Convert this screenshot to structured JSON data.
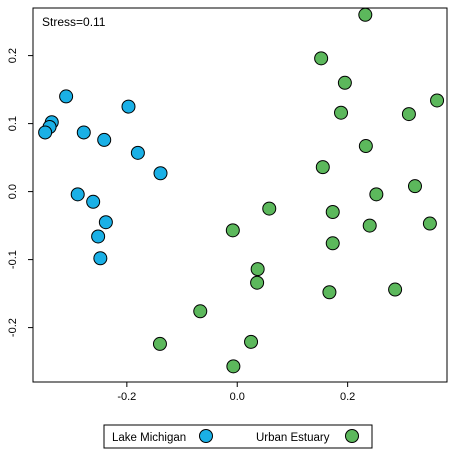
{
  "chart_data": {
    "type": "scatter",
    "title": "",
    "xlabel": "",
    "ylabel": "",
    "annotation": "Stress=0.11",
    "xlim": [
      -0.37,
      0.38
    ],
    "ylim": [
      -0.28,
      0.27
    ],
    "x_ticks": [
      -0.2,
      0.0,
      0.2
    ],
    "x_tick_labels": [
      "-0.2",
      "0.0",
      "0.2"
    ],
    "y_ticks": [
      -0.2,
      -0.1,
      0.0,
      0.1,
      0.2
    ],
    "y_tick_labels": [
      "-0.2",
      "-0.1",
      "0.0",
      "0.1",
      "0.2"
    ],
    "grid": false,
    "legend_position": "bottom",
    "series": [
      {
        "name": "Lake Michigan",
        "color": "#1ab0e6",
        "points": [
          [
            -0.31,
            0.14
          ],
          [
            -0.197,
            0.125
          ],
          [
            -0.336,
            0.102
          ],
          [
            -0.34,
            0.095
          ],
          [
            -0.348,
            0.087
          ],
          [
            -0.278,
            0.087
          ],
          [
            -0.241,
            0.076
          ],
          [
            -0.18,
            0.057
          ],
          [
            -0.139,
            0.027
          ],
          [
            -0.289,
            -0.004
          ],
          [
            -0.261,
            -0.015
          ],
          [
            -0.238,
            -0.045
          ],
          [
            -0.252,
            -0.066
          ],
          [
            -0.248,
            -0.098
          ]
        ]
      },
      {
        "name": "Urban Estuary",
        "color": "#5cb85c",
        "points": [
          [
            0.232,
            0.26
          ],
          [
            0.152,
            0.196
          ],
          [
            0.195,
            0.16
          ],
          [
            0.362,
            0.134
          ],
          [
            0.188,
            0.116
          ],
          [
            0.311,
            0.114
          ],
          [
            0.233,
            0.067
          ],
          [
            0.155,
            0.036
          ],
          [
            0.322,
            0.008
          ],
          [
            0.252,
            -0.004
          ],
          [
            0.058,
            -0.025
          ],
          [
            0.173,
            -0.03
          ],
          [
            0.349,
            -0.047
          ],
          [
            0.24,
            -0.05
          ],
          [
            -0.008,
            -0.057
          ],
          [
            0.173,
            -0.076
          ],
          [
            0.037,
            -0.114
          ],
          [
            0.036,
            -0.134
          ],
          [
            0.167,
            -0.148
          ],
          [
            0.286,
            -0.144
          ],
          [
            -0.067,
            -0.176
          ],
          [
            -0.14,
            -0.224
          ],
          [
            0.025,
            -0.221
          ],
          [
            -0.007,
            -0.257
          ]
        ]
      }
    ]
  },
  "legend": {
    "items": [
      {
        "label": "Lake Michigan",
        "color": "#1ab0e6"
      },
      {
        "label": "Urban Estuary",
        "color": "#5cb85c"
      }
    ]
  }
}
